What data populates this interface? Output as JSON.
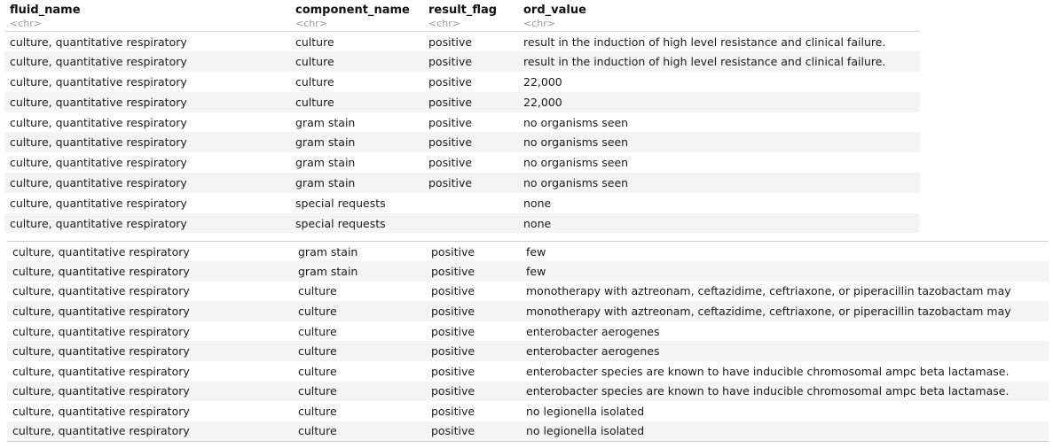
{
  "columns": [
    {
      "name": "fluid_name",
      "type": "<chr>"
    },
    {
      "name": "component_name",
      "type": "<chr>"
    },
    {
      "name": "result_flag",
      "type": "<chr>"
    },
    {
      "name": "ord_value",
      "type": "<chr>"
    }
  ],
  "table1": {
    "rows": [
      [
        "culture, quantitative respiratory",
        "culture",
        "positive",
        "result in the induction of high level resistance and clinical failure."
      ],
      [
        "culture, quantitative respiratory",
        "culture",
        "positive",
        "result in the induction of high level resistance and clinical failure."
      ],
      [
        "culture, quantitative respiratory",
        "culture",
        "positive",
        "22,000"
      ],
      [
        "culture, quantitative respiratory",
        "culture",
        "positive",
        "22,000"
      ],
      [
        "culture, quantitative respiratory",
        "gram stain",
        "positive",
        "no organisms seen"
      ],
      [
        "culture, quantitative respiratory",
        "gram stain",
        "positive",
        "no organisms seen"
      ],
      [
        "culture, quantitative respiratory",
        "gram stain",
        "positive",
        "no organisms seen"
      ],
      [
        "culture, quantitative respiratory",
        "gram stain",
        "positive",
        "no organisms seen"
      ],
      [
        "culture, quantitative respiratory",
        "special requests",
        "",
        "none"
      ],
      [
        "culture, quantitative respiratory",
        "special requests",
        "",
        "none"
      ]
    ]
  },
  "table2": {
    "rows": [
      [
        "culture, quantitative respiratory",
        "gram stain",
        "positive",
        "few"
      ],
      [
        "culture, quantitative respiratory",
        "gram stain",
        "positive",
        "few"
      ],
      [
        "culture, quantitative respiratory",
        "culture",
        "positive",
        "monotherapy with aztreonam, ceftazidime, ceftriaxone, or piperacillin tazobactam may"
      ],
      [
        "culture, quantitative respiratory",
        "culture",
        "positive",
        "monotherapy with aztreonam, ceftazidime, ceftriaxone, or piperacillin tazobactam may"
      ],
      [
        "culture, quantitative respiratory",
        "culture",
        "positive",
        "enterobacter aerogenes"
      ],
      [
        "culture, quantitative respiratory",
        "culture",
        "positive",
        "enterobacter aerogenes"
      ],
      [
        "culture, quantitative respiratory",
        "culture",
        "positive",
        "enterobacter species are known to have inducible chromosomal ampc beta lactamase."
      ],
      [
        "culture, quantitative respiratory",
        "culture",
        "positive",
        "enterobacter species are known to have inducible chromosomal ampc beta lactamase."
      ],
      [
        "culture, quantitative respiratory",
        "culture",
        "positive",
        "no legionella isolated"
      ],
      [
        "culture, quantitative respiratory",
        "culture",
        "positive",
        "no legionella isolated"
      ]
    ]
  }
}
